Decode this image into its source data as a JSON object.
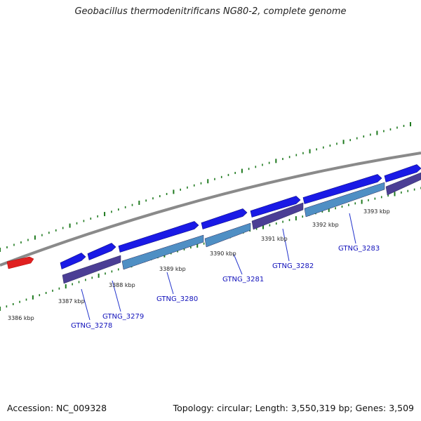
{
  "title": "Geobacillus thermodenitrificans NG80-2, complete genome",
  "footer": {
    "accession": "Accession: NC_009328",
    "stats": "Topology: circular; Length: 3,550,319 bp; Genes: 3,509"
  },
  "colors": {
    "background": "#ffffff",
    "backbone": "#8a8a8a",
    "gene_forward": "#1a1ae6",
    "gene_reverse_light": "#4f8fc4",
    "gene_reverse_dark": "#4b3e95",
    "highlight_gene": "#e02020",
    "ticks": "#1f7a1f",
    "gene_labels": "#1111bb",
    "kbp_labels": "#222222"
  },
  "kbp_labels": [
    "3386 kbp",
    "3387 kbp",
    "3388 kbp",
    "3389 kbp",
    "3390 kbp",
    "3391 kbp",
    "3392 kbp",
    "3393 kbp"
  ],
  "gene_labels": [
    "GTNG_3278",
    "GTNG_3279",
    "GTNG_3280",
    "GTNG_3281",
    "GTNG_3282",
    "GTNG_3283"
  ]
}
